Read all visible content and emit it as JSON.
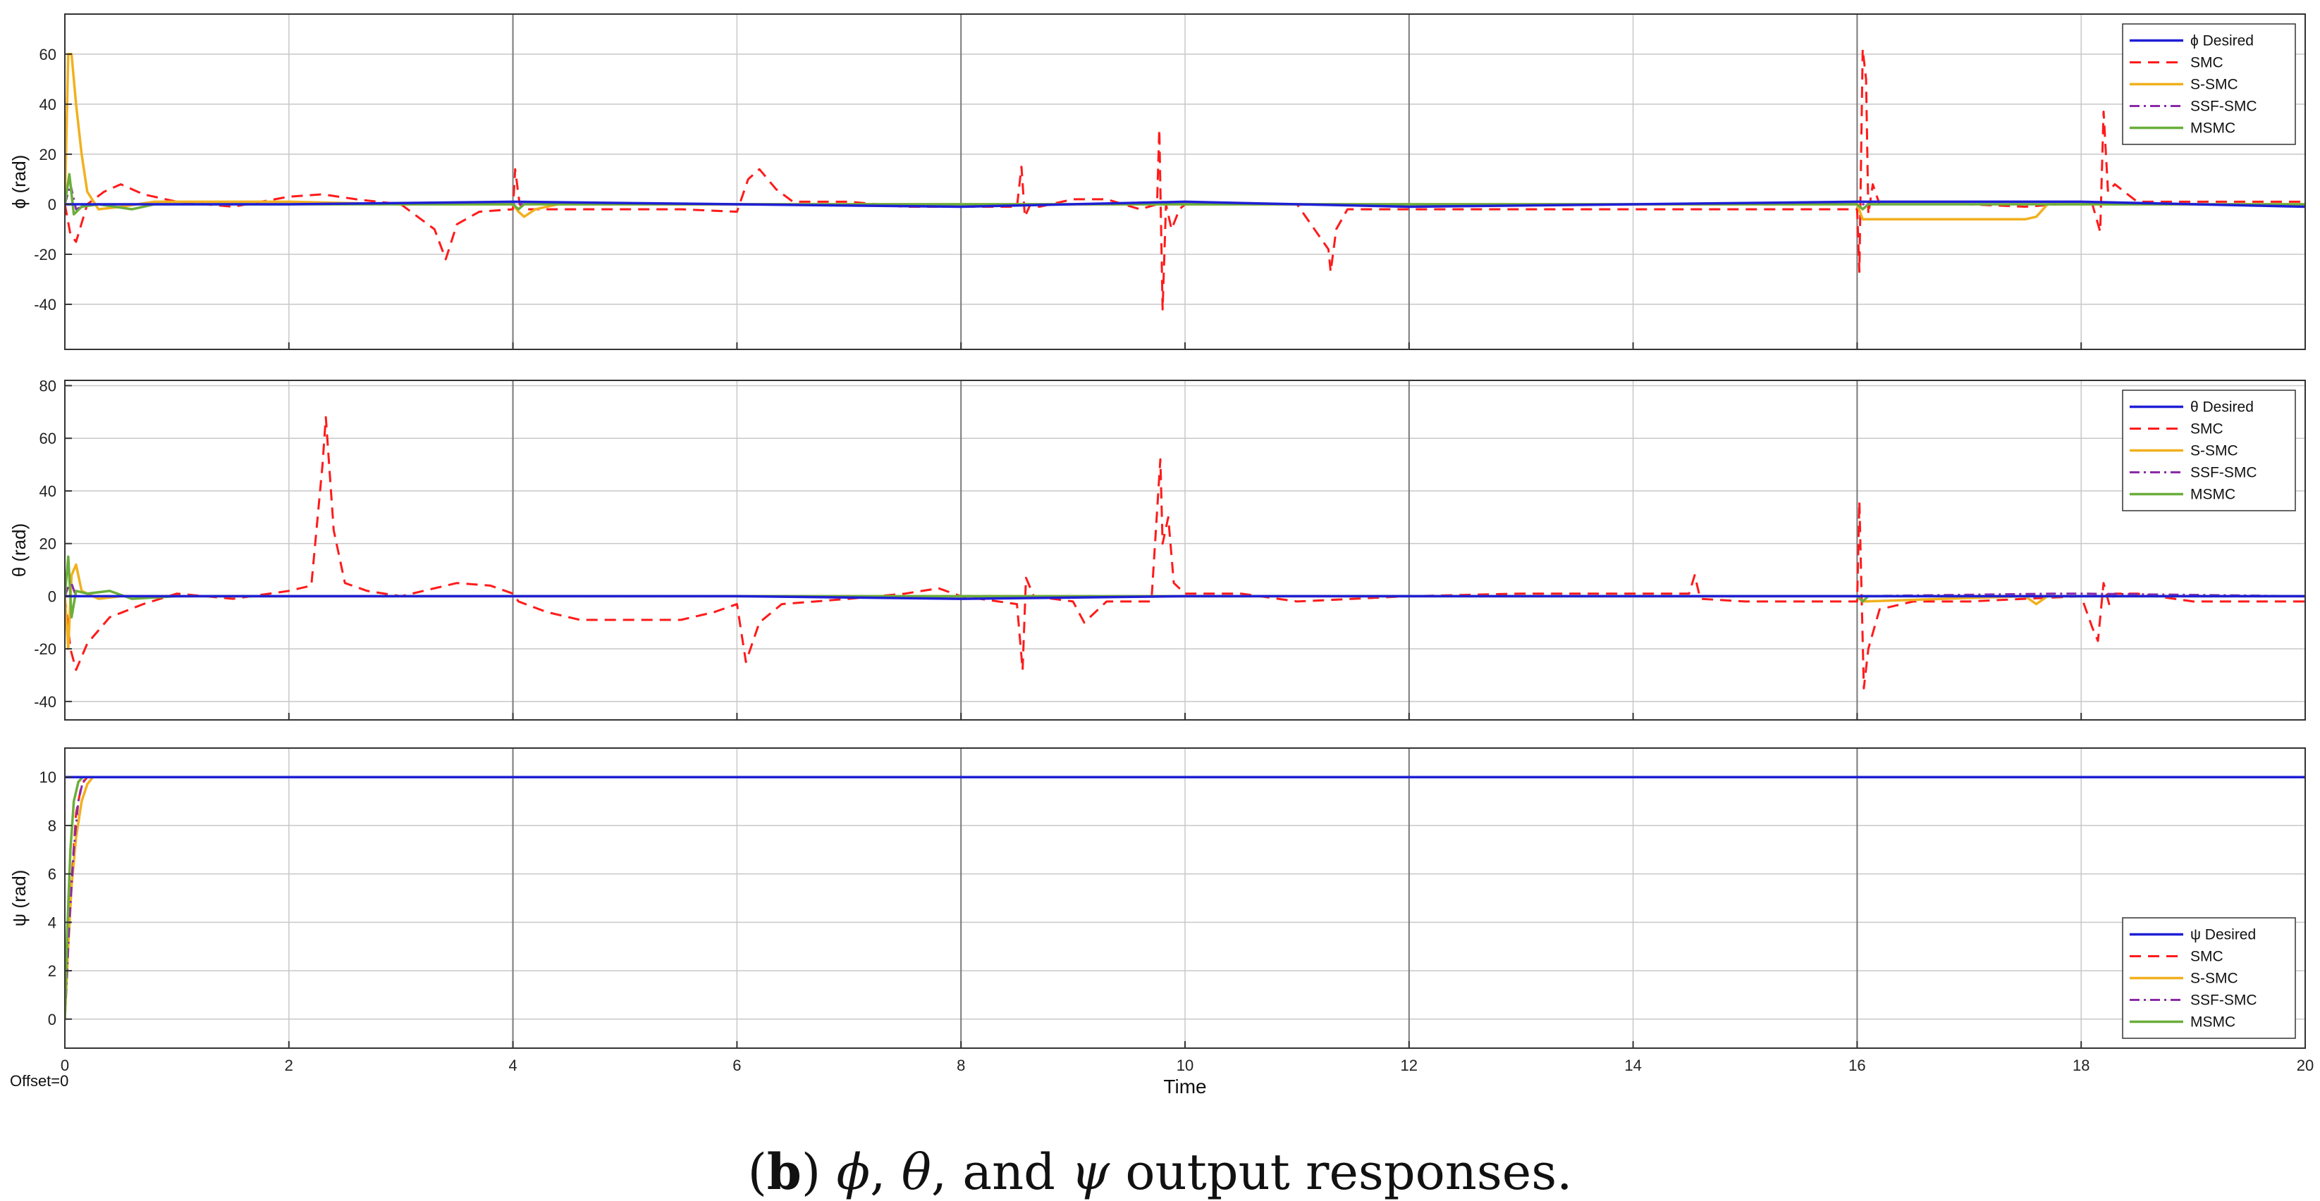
{
  "caption": {
    "letter": "b",
    "open": "(",
    "close": ")",
    "sym1": "ϕ",
    "sym2": "θ",
    "sym3": "ψ",
    "sep1": ", ",
    "sep2": ", and ",
    "tail": " output responses."
  },
  "offset_label": "Offset=0",
  "colors": {
    "Desired": "#1f1fd6",
    "SMC": "#ff1a1a",
    "S-SMC": "#f2b01e",
    "SSF-SMC": "#8b2aa8",
    "MSMC": "#6aae3a"
  },
  "chart_data": [
    {
      "type": "line",
      "title": "",
      "xlabel": "",
      "ylabel": "ϕ (rad)",
      "xlim": [
        0,
        20
      ],
      "ylim": [
        -58,
        76
      ],
      "xticks": [
        0,
        2,
        4,
        6,
        8,
        10,
        12,
        14,
        16,
        18,
        20
      ],
      "yticks": [
        -40,
        -20,
        0,
        20,
        40,
        60
      ],
      "show_xtick_labels": false,
      "grid": true,
      "legend": "top-right",
      "series": [
        {
          "name": "ϕ Desired",
          "style": "Desired",
          "x": [
            0,
            2,
            4,
            6,
            8,
            10,
            12,
            14,
            16,
            18,
            20
          ],
          "y": [
            0,
            0,
            1,
            0,
            -1,
            1,
            -1,
            0,
            1,
            1,
            -1
          ]
        },
        {
          "name": "SMC",
          "style": "SMC",
          "x": [
            0,
            0.05,
            0.1,
            0.2,
            0.35,
            0.5,
            0.7,
            1,
            1.5,
            2,
            2.3,
            2.6,
            3,
            3.3,
            3.4,
            3.5,
            3.7,
            4,
            4.02,
            4.06,
            4.1,
            4.3,
            5,
            5.5,
            6,
            6.1,
            6.2,
            6.35,
            6.5,
            7,
            7.5,
            8,
            8.5,
            8.54,
            8.57,
            8.62,
            8.7,
            9,
            9.3,
            9.6,
            9.75,
            9.77,
            9.8,
            9.83,
            9.88,
            9.95,
            10,
            10.5,
            11,
            11.28,
            11.3,
            11.35,
            11.45,
            11.6,
            12,
            13,
            14,
            15,
            15.5,
            16,
            16.02,
            16.05,
            16.08,
            16.1,
            16.14,
            16.2,
            16.3,
            17,
            17.5,
            17.8,
            18,
            18.1,
            18.17,
            18.2,
            18.24,
            18.3,
            18.5,
            19,
            19.5,
            20
          ],
          "y": [
            0,
            -12,
            -15,
            0,
            5,
            8,
            4,
            1,
            -1,
            3,
            4,
            2,
            0,
            -10,
            -22,
            -8,
            -3,
            -2,
            14,
            0,
            -2,
            -2,
            -2,
            -2,
            -3,
            10,
            14,
            6,
            1,
            1,
            -1,
            -1,
            -1,
            15,
            -5,
            0,
            -1,
            2,
            2,
            -2,
            0,
            30,
            -42,
            0,
            -10,
            -2,
            0,
            0,
            0,
            -18,
            -27,
            -10,
            -2,
            -2,
            -2,
            -2,
            -2,
            -2,
            -2,
            -2,
            -27,
            62,
            50,
            -4,
            8,
            0,
            0,
            0,
            -1,
            0,
            0,
            0,
            -11,
            37,
            5,
            8,
            1,
            1,
            1,
            1
          ]
        },
        {
          "name": "S-SMC",
          "style": "S-SMC",
          "x": [
            0,
            0.03,
            0.06,
            0.1,
            0.15,
            0.2,
            0.3,
            0.5,
            0.8,
            1,
            2,
            3,
            4,
            4.05,
            4.1,
            4.2,
            4.4,
            5,
            6,
            8,
            10,
            12,
            14,
            16,
            16.05,
            16.1,
            16.5,
            17,
            17.5,
            17.6,
            17.7,
            18,
            20
          ],
          "y": [
            0,
            60,
            60,
            40,
            20,
            5,
            -2,
            -1,
            1,
            1,
            1,
            0,
            0,
            -3,
            -5,
            -2,
            0,
            0,
            0,
            0,
            0,
            0,
            0,
            0,
            -6,
            -6,
            -6,
            -6,
            -6,
            -5,
            0,
            0,
            0
          ]
        },
        {
          "name": "SSF-SMC",
          "style": "SSF-SMC",
          "x": [
            0,
            0.05,
            0.1,
            0.2,
            0.4,
            1,
            4,
            8,
            12,
            16,
            20
          ],
          "y": [
            0,
            8,
            -2,
            0,
            0,
            0,
            0,
            0,
            0,
            0,
            0
          ]
        },
        {
          "name": "MSMC",
          "style": "MSMC",
          "x": [
            0,
            0.04,
            0.08,
            0.15,
            0.3,
            0.6,
            0.8,
            1,
            4,
            4.05,
            4.1,
            6,
            8,
            10,
            12,
            14,
            16,
            16.05,
            16.1,
            18,
            20
          ],
          "y": [
            0,
            12,
            -4,
            -1,
            0,
            -2,
            0,
            0,
            0,
            -2,
            0,
            0,
            0,
            0,
            0,
            0,
            0,
            -2,
            0,
            0,
            0
          ]
        }
      ]
    },
    {
      "type": "line",
      "title": "",
      "xlabel": "",
      "ylabel": "θ (rad)",
      "xlim": [
        0,
        20
      ],
      "ylim": [
        -47,
        82
      ],
      "xticks": [
        0,
        2,
        4,
        6,
        8,
        10,
        12,
        14,
        16,
        18,
        20
      ],
      "yticks": [
        -40,
        -20,
        0,
        20,
        40,
        60,
        80
      ],
      "show_xtick_labels": false,
      "grid": true,
      "legend": "top-right",
      "series": [
        {
          "name": "θ Desired",
          "style": "Desired",
          "x": [
            0,
            2,
            4,
            6,
            8,
            10,
            12,
            14,
            16,
            18,
            20
          ],
          "y": [
            0,
            0,
            0,
            0,
            -1,
            0,
            0,
            0,
            0,
            0,
            0
          ]
        },
        {
          "name": "SMC",
          "style": "SMC",
          "x": [
            0,
            0.05,
            0.1,
            0.2,
            0.4,
            0.7,
            1,
            1.5,
            2,
            2.2,
            2.3,
            2.33,
            2.4,
            2.5,
            2.7,
            3,
            3.5,
            3.8,
            4,
            4.05,
            4.3,
            4.6,
            5,
            5.5,
            5.8,
            6,
            6.08,
            6.2,
            6.4,
            7,
            7.5,
            7.8,
            8,
            8.5,
            8.55,
            8.58,
            8.65,
            9,
            9.1,
            9.3,
            9.7,
            9.78,
            9.8,
            9.85,
            9.9,
            10,
            10.5,
            11,
            12,
            13,
            14,
            14.5,
            14.55,
            14.6,
            15,
            16,
            16.02,
            16.06,
            16.1,
            16.2,
            16.5,
            17,
            17.5,
            18,
            18.1,
            18.15,
            18.2,
            18.25,
            18.3,
            18.5,
            19,
            20
          ],
          "y": [
            0,
            -20,
            -28,
            -18,
            -8,
            -3,
            1,
            -1,
            2,
            4,
            50,
            68,
            25,
            5,
            2,
            0,
            5,
            4,
            1,
            -2,
            -6,
            -9,
            -9,
            -9,
            -6,
            -3,
            -25,
            -10,
            -3,
            -1,
            1,
            3,
            0,
            -3,
            -28,
            7,
            0,
            -2,
            -10,
            -2,
            -2,
            52,
            20,
            30,
            5,
            1,
            1,
            -2,
            0,
            1,
            1,
            1,
            8,
            -1,
            -2,
            -2,
            36,
            -35,
            -20,
            -5,
            -2,
            -2,
            -1,
            0,
            -12,
            -17,
            5,
            -3,
            1,
            1,
            -2,
            -2
          ]
        },
        {
          "name": "S-SMC",
          "style": "S-SMC",
          "x": [
            0,
            0.03,
            0.06,
            0.1,
            0.15,
            0.3,
            0.5,
            1,
            4,
            6,
            8,
            10,
            14,
            16,
            16.05,
            17.5,
            17.6,
            17.7,
            18,
            20
          ],
          "y": [
            0,
            -20,
            8,
            12,
            2,
            -1,
            0,
            0,
            0,
            0,
            0,
            0,
            0,
            0,
            -2,
            0,
            -3,
            0,
            0,
            0
          ]
        },
        {
          "name": "SSF-SMC",
          "style": "SSF-SMC",
          "x": [
            0,
            0.05,
            0.1,
            0.3,
            1,
            4,
            8,
            12,
            16,
            17.8,
            18,
            20
          ],
          "y": [
            0,
            6,
            0,
            0,
            0,
            0,
            0,
            0,
            0,
            1,
            1,
            0
          ]
        },
        {
          "name": "MSMC",
          "style": "MSMC",
          "x": [
            0,
            0.03,
            0.06,
            0.1,
            0.2,
            0.4,
            0.6,
            1,
            4,
            8,
            12,
            16,
            16.05,
            16.1,
            18,
            20
          ],
          "y": [
            0,
            15,
            -8,
            2,
            1,
            2,
            -1,
            0,
            0,
            0,
            0,
            0,
            -2,
            0,
            0,
            0
          ]
        }
      ]
    },
    {
      "type": "line",
      "title": "",
      "xlabel": "Time",
      "ylabel": "ψ (rad)",
      "xlim": [
        0,
        20
      ],
      "ylim": [
        -1.2,
        11.2
      ],
      "xticks": [
        0,
        2,
        4,
        6,
        8,
        10,
        12,
        14,
        16,
        18,
        20
      ],
      "yticks": [
        0,
        2,
        4,
        6,
        8,
        10
      ],
      "show_xtick_labels": true,
      "grid": true,
      "legend": "bottom-right",
      "series": [
        {
          "name": "ψ Desired",
          "style": "Desired",
          "x": [
            0,
            20
          ],
          "y": [
            10,
            10
          ]
        },
        {
          "name": "SMC",
          "style": "SMC",
          "x": [
            0,
            0.05,
            0.1,
            0.15,
            0.2,
            0.25,
            20
          ],
          "y": [
            0,
            5,
            8.5,
            9.7,
            10,
            10,
            10
          ]
        },
        {
          "name": "S-SMC",
          "style": "S-SMC",
          "x": [
            0,
            0.03,
            0.06,
            0.1,
            0.15,
            0.2,
            0.25,
            0.3,
            20
          ],
          "y": [
            0,
            3,
            5.5,
            7.5,
            9,
            9.7,
            10,
            10,
            10
          ]
        },
        {
          "name": "SSF-SMC",
          "style": "SSF-SMC",
          "x": [
            0,
            0.04,
            0.08,
            0.12,
            0.16,
            0.2,
            20
          ],
          "y": [
            0,
            4,
            7,
            9,
            9.8,
            10,
            10
          ]
        },
        {
          "name": "MSMC",
          "style": "MSMC",
          "x": [
            0,
            0.02,
            0.05,
            0.08,
            0.12,
            0.16,
            20
          ],
          "y": [
            0,
            3.5,
            7,
            9,
            9.8,
            10,
            10
          ]
        }
      ]
    }
  ]
}
